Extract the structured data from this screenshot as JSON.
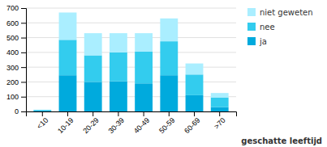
{
  "chart_data": {
    "type": "bar",
    "stacked": true,
    "categories": [
      "<10",
      "10-19",
      "20-29",
      "30-39",
      "40-49",
      "50-59",
      "60-69",
      ">70"
    ],
    "series": [
      {
        "name": "ja",
        "color": "#00aadd",
        "values": [
          5,
          245,
          200,
          205,
          190,
          245,
          110,
          30
        ]
      },
      {
        "name": "nee",
        "color": "#33ccee",
        "values": [
          5,
          240,
          180,
          195,
          215,
          230,
          140,
          65
        ]
      },
      {
        "name": "niet geweten",
        "color": "#aaeeff",
        "values": [
          2,
          185,
          150,
          130,
          125,
          155,
          75,
          30
        ]
      }
    ],
    "xlabel": "geschatte leeftijd",
    "ylim": [
      0,
      700
    ],
    "yticks": [
      0,
      100,
      200,
      300,
      400,
      500,
      600,
      700
    ],
    "grid": true,
    "legend": "right"
  }
}
